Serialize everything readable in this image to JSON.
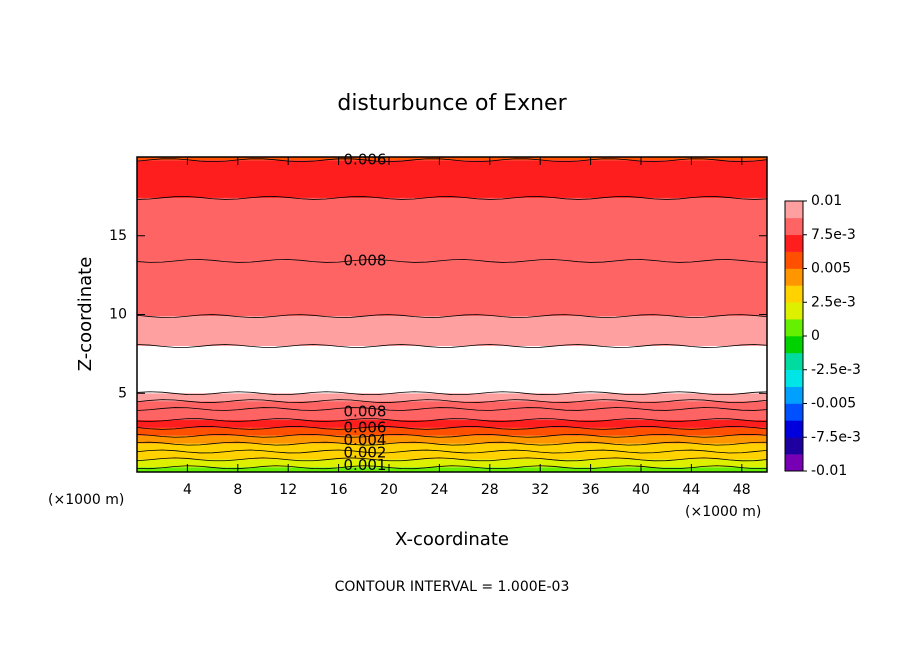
{
  "chart_data": {
    "type": "contour",
    "title": "disturbunce of Exner",
    "xlabel": "X-coordinate",
    "ylabel": "Z-coordinate",
    "xunit_left": "(×1000 m)",
    "xunit_right": "(×1000 m)",
    "footer": "CONTOUR INTERVAL = 1.000E-03",
    "xlim": [
      0,
      50
    ],
    "xticks": [
      4,
      8,
      12,
      16,
      20,
      24,
      28,
      32,
      36,
      40,
      44,
      48
    ],
    "ylim": [
      0,
      20
    ],
    "yticks": [
      5,
      10,
      15
    ],
    "bands": [
      {
        "z": [
          0,
          0.3
        ],
        "value": 0.0005
      },
      {
        "z": [
          0.3,
          0.8
        ],
        "value": 0.0015
      },
      {
        "z": [
          0.8,
          1.3
        ],
        "value": 0.0025
      },
      {
        "z": [
          1.3,
          1.8
        ],
        "value": 0.0035
      },
      {
        "z": [
          1.8,
          2.3
        ],
        "value": 0.0045
      },
      {
        "z": [
          2.3,
          2.8
        ],
        "value": 0.0055
      },
      {
        "z": [
          2.8,
          3.3
        ],
        "value": 0.0065
      },
      {
        "z": [
          3.3,
          4
        ],
        "value": 0.0075
      },
      {
        "z": [
          4,
          4.5
        ],
        "value": 0.0085
      },
      {
        "z": [
          4.5,
          5
        ],
        "value": 0.0095
      },
      {
        "z": [
          5,
          8
        ],
        "value": 0.0105
      },
      {
        "z": [
          8,
          9.9
        ],
        "value": 0.0095
      },
      {
        "z": [
          9.9,
          13.4
        ],
        "value": 0.0085
      },
      {
        "z": [
          13.4,
          17.4
        ],
        "value": 0.0075
      },
      {
        "z": [
          17.4,
          19.8
        ],
        "value": 0.0065
      },
      {
        "z": [
          19.8,
          20
        ],
        "value": 0.0058
      }
    ],
    "contour_labels": [
      {
        "value": 0.006,
        "z": 19.8
      },
      {
        "value": 0.008,
        "z": 13.4
      },
      {
        "value": 0.008,
        "z": 3.8
      },
      {
        "value": 0.006,
        "z": 2.8
      },
      {
        "value": 0.004,
        "z": 2.0
      },
      {
        "value": 0.002,
        "z": 1.2
      },
      {
        "value": 0.001,
        "z": 0.4
      }
    ],
    "clim": [
      -0.01,
      0.01
    ],
    "colors": [
      "#7800b4",
      "#1e00a0",
      "#0000dc",
      "#0050ff",
      "#00a0ff",
      "#00e6e6",
      "#00dca0",
      "#00d200",
      "#64f000",
      "#dcf000",
      "#ffd200",
      "#ff9600",
      "#ff5000",
      "#ff1e1e",
      "#ff6464",
      "#ffa0a0"
    ],
    "cticks": [
      {
        "value": 0.01,
        "label": "0.01"
      },
      {
        "value": 0.0075,
        "label": "7.5e-3"
      },
      {
        "value": 0.005,
        "label": "0.005"
      },
      {
        "value": 0.0025,
        "label": "2.5e-3"
      },
      0,
      {
        "value": -0.0025,
        "label": "-2.5e-3"
      },
      {
        "value": -0.005,
        "label": "-0.005"
      },
      {
        "value": -0.0075,
        "label": "-7.5e-3"
      },
      {
        "value": -0.01,
        "label": "-0.01"
      }
    ]
  }
}
